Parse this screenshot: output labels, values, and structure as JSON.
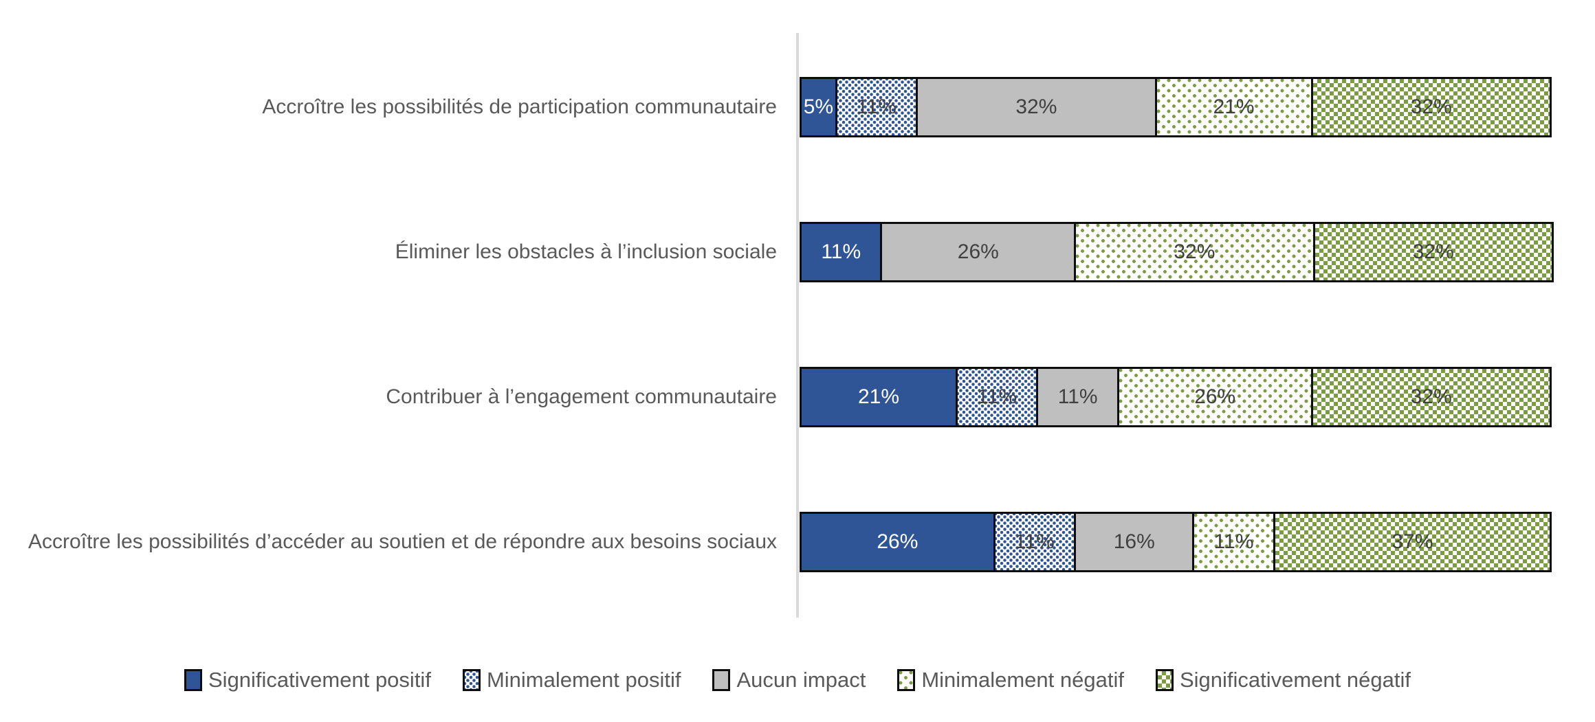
{
  "chart_data": {
    "type": "bar",
    "orientation": "horizontal",
    "stacked": true,
    "title": "",
    "xlabel": "",
    "ylabel": "",
    "xlim": [
      0,
      100
    ],
    "value_label_format": "percent",
    "grid": false,
    "legend_position": "bottom",
    "axis_color": "#d9d9d9",
    "categories": [
      "Accroître les possibilités de participation communautaire",
      "Éliminer les obstacles à l’inclusion sociale",
      "Contribuer à l’engagement communautaire",
      "Accroître les possibilités d’accéder au soutien et de répondre aux besoins sociaux"
    ],
    "series": [
      {
        "name": "Significativement positif",
        "style": "solid-blue",
        "color": "#2f5597",
        "label_color": "light",
        "values": [
          5,
          11,
          21,
          26
        ]
      },
      {
        "name": "Minimalement positif",
        "style": "blue-dots",
        "color": "#2f5597",
        "label_color": "dark",
        "values": [
          11,
          0,
          11,
          11
        ]
      },
      {
        "name": "Aucun impact",
        "style": "solid-gray",
        "color": "#bfbfbf",
        "label_color": "dark",
        "values": [
          32,
          26,
          11,
          16
        ]
      },
      {
        "name": "Minimalement négatif",
        "style": "green-sparse-dots",
        "color": "#7c9c43",
        "label_color": "dark",
        "values": [
          21,
          32,
          26,
          11
        ]
      },
      {
        "name": "Significativement négatif",
        "style": "green-checker",
        "color": "#7c9c43",
        "label_color": "dark",
        "values": [
          32,
          32,
          32,
          37
        ]
      }
    ]
  },
  "legend": {
    "items": [
      {
        "label": "Significativement positif",
        "style": "solid-blue"
      },
      {
        "label": "Minimalement positif",
        "style": "blue-dots"
      },
      {
        "label": "Aucun impact",
        "style": "solid-gray"
      },
      {
        "label": "Minimalement négatif",
        "style": "green-sparse-dots"
      },
      {
        "label": "Significativement négatif",
        "style": "green-checker"
      }
    ]
  }
}
